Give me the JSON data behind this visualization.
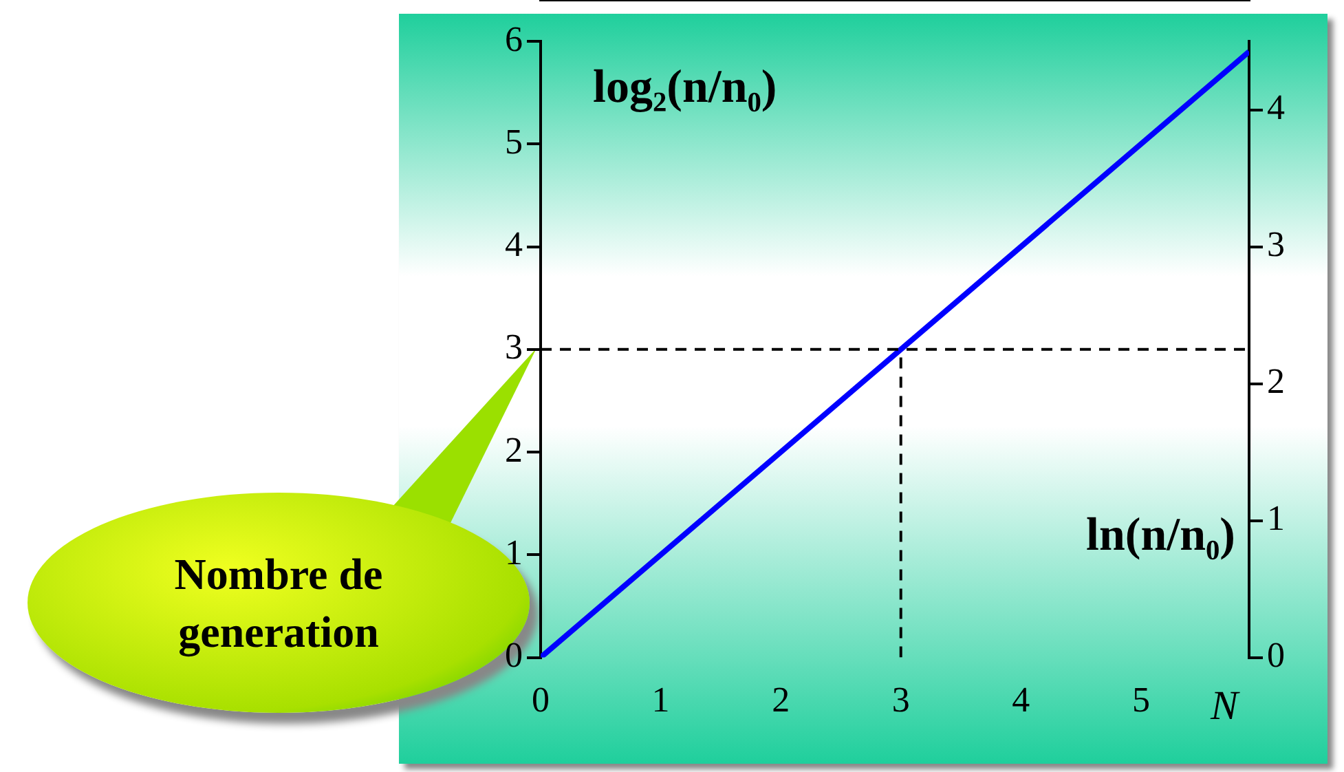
{
  "chart_data": {
    "type": "line",
    "xlabel": "N",
    "x": [
      0,
      5.9
    ],
    "series": [
      {
        "color": "#0000ff",
        "values": [
          0,
          5.9
        ]
      },
      {
        "type": "line",
        "x": [
          3,
          3
        ],
        "values": [
          0,
          3
        ],
        "color": "#000000",
        "line_style": "dashed"
      }
    ],
    "xlim": [
      0,
      5.9
    ],
    "xticks": [
      0,
      1,
      2,
      3,
      4,
      5
    ],
    "ylim": [
      0,
      6
    ],
    "yticks": [
      0,
      1,
      2,
      3,
      4,
      5,
      6
    ],
    "y2lim": [
      0,
      4.5
    ],
    "y2ticks": [
      0,
      1,
      2,
      3,
      4
    ],
    "ref_lines": [
      {
        "axis": "y",
        "value": 3,
        "color": "#000000",
        "line_style": "dashed"
      }
    ],
    "annotations": [
      "log₂(n/n₀)",
      "ln(n/n₀)",
      "Nombre de generation"
    ],
    "grid": false,
    "legend": false,
    "marker": "none",
    "line_style": "solid"
  }
}
